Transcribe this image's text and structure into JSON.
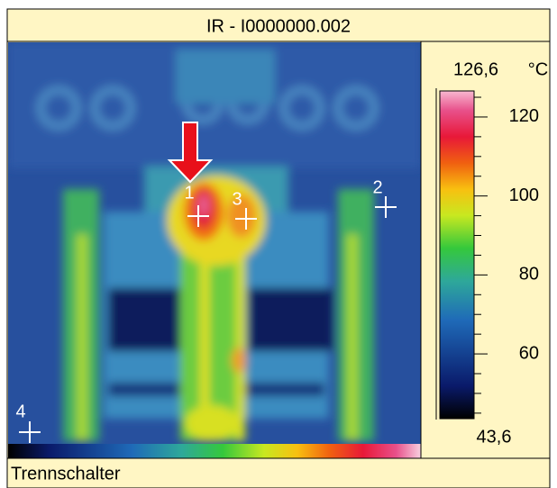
{
  "header": {
    "title": "IR - I0000000.002"
  },
  "scale": {
    "max": {
      "value": 126.6,
      "label": "126,6"
    },
    "min": {
      "value": 43.6,
      "label": "43,6"
    },
    "unit": "°C",
    "ticks": [
      120,
      100,
      80,
      60
    ],
    "minor_ticks": [
      45,
      50,
      55,
      65,
      70,
      75,
      85,
      90,
      95,
      105,
      110,
      115,
      125
    ]
  },
  "markers": [
    "1",
    "2",
    "3",
    "4"
  ],
  "footer": {
    "caption": "Trennschalter"
  }
}
